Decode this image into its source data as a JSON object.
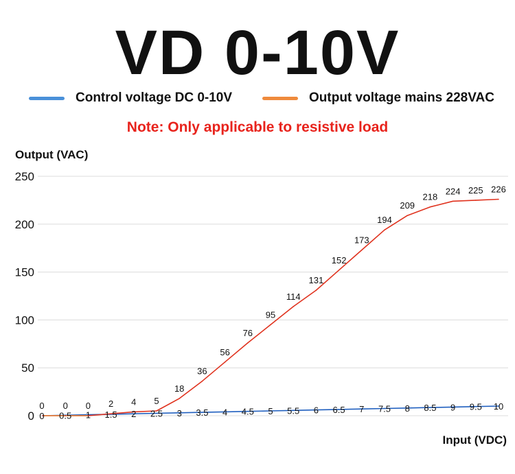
{
  "header": {
    "title": "VD 0-10V"
  },
  "note": {
    "text": "Note: Only applicable to resistive load",
    "color": "#e8231c"
  },
  "chart_data": {
    "type": "line",
    "title": "VD 0-10V",
    "xlabel": "Input (VDC)",
    "ylabel": "Output (VAC)",
    "ylim": [
      0,
      250
    ],
    "yticks": [
      "0",
      "50",
      "100",
      "150",
      "200",
      "250"
    ],
    "grid": true,
    "legend_position": "top",
    "x": [
      "0",
      "0.5",
      "1",
      "1.5",
      "2",
      "2.5",
      "3",
      "3.5",
      "4",
      "4.5",
      "5",
      "5.5",
      "6",
      "6.5",
      "7",
      "7.5",
      "8",
      "8.5",
      "9",
      "9.5",
      "10"
    ],
    "series": [
      {
        "name": "Control voltage DC 0-10V",
        "color": "#4a90d9",
        "line_color": "#1f5fbf",
        "values": [
          0,
          0.5,
          1,
          1.5,
          2,
          2.5,
          3,
          3.5,
          4,
          4.5,
          5,
          5.5,
          6,
          6.5,
          7,
          7.5,
          8,
          8.5,
          9,
          9.5,
          10
        ],
        "labels": [
          "0",
          "0.5",
          "1",
          "1.5",
          "2",
          "2.5",
          "3",
          "3.5",
          "4",
          "4.5",
          "5",
          "5.5",
          "6",
          "6.5",
          "7",
          "7.5",
          "8",
          "8.5",
          "9",
          "9.5",
          "10"
        ]
      },
      {
        "name": "Output voltage mains 228VAC",
        "color": "#ef8a3c",
        "line_color": "#e0321e",
        "values": [
          0,
          0,
          0,
          2,
          4,
          5,
          18,
          36,
          56,
          76,
          95,
          114,
          131,
          152,
          173,
          194,
          209,
          218,
          224,
          225,
          226
        ],
        "labels": [
          "0",
          "0",
          "0",
          "2",
          "4",
          "5",
          "18",
          "36",
          "56",
          "76",
          "95",
          "114",
          "131",
          "152",
          "173",
          "194",
          "209",
          "218",
          "224",
          "225",
          "226"
        ]
      }
    ]
  }
}
